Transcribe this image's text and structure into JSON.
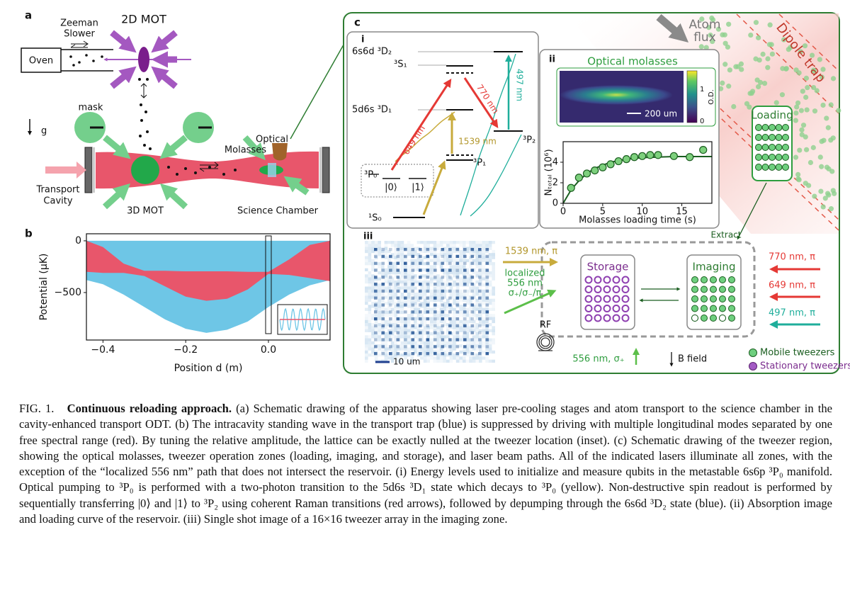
{
  "figure": {
    "a": {
      "label": "a",
      "oven": "Oven",
      "zeeman_1": "Zeeman",
      "zeeman_2": "Slower",
      "mot2d": "2D MOT",
      "gravity": "g",
      "mask": "mask",
      "optical_1": "Optical",
      "optical_2": "Molasses",
      "transport_1": "Transport",
      "transport_2": "Cavity",
      "mot3d": "3D MOT",
      "science": "Science Chamber"
    },
    "b": {
      "label": "b"
    },
    "c": {
      "label": "c",
      "atom_flux_1": "Atom",
      "atom_flux_2": "flux",
      "dipole_trap": "Dipole trap",
      "loading": "Loading",
      "extract": "Extract",
      "storage": "Storage",
      "imaging": "Imaging",
      "beam_1539": "1539 nm, π",
      "localized": [
        "localized",
        "556 nm",
        "σ₊/σ₋/π"
      ],
      "rf": "RF",
      "sigma_beam": "556 nm, σ₊",
      "bfield": "B field",
      "beams_right": [
        "770 nm, π",
        "649 nm, π",
        "497 nm, π"
      ],
      "legend": [
        "Mobile tweezers",
        "Stationary tweezers"
      ]
    },
    "i": {
      "label": "i",
      "levels": {
        "d2": "6s6d ³D₂",
        "s1": "³S₁",
        "d1": "5d6s ³D₁",
        "p2": "³P₂",
        "p1": "³P₁",
        "p0": "³P₀",
        "q0": "|0⟩",
        "q1": "|1⟩",
        "s0": "¹S₀"
      },
      "transitions": {
        "t649": "649 nm",
        "t770": "770 nm",
        "t497": "497 nm",
        "t1539": "1539 nm"
      }
    },
    "ii": {
      "label": "ii",
      "title": "Optical molasses",
      "cbar_ticks": [
        0,
        1
      ],
      "cbar_label": "O.D.",
      "scale": "200 um"
    },
    "iii": {
      "label": "iii",
      "scale": "10 um"
    }
  },
  "chart_data": [
    {
      "type": "area",
      "xlabel": "Position d (m)",
      "ylabel": "Potential (μK)",
      "x": [
        -0.44,
        -0.4,
        -0.35,
        -0.3,
        -0.25,
        -0.2,
        -0.15,
        -0.1,
        -0.05,
        0,
        0.05,
        0.1,
        0.149
      ],
      "series": [
        {
          "color": "#6ec6e6",
          "upper": [
            0,
            0,
            0,
            0,
            0,
            0,
            0,
            0,
            0,
            0,
            0,
            0,
            0
          ],
          "lower": [
            -380,
            -420,
            -520,
            -640,
            -760,
            -850,
            -890,
            -860,
            -780,
            -640,
            -520,
            -430,
            -380
          ]
        },
        {
          "color": "#e8566b",
          "upper": [
            0,
            -60,
            -220,
            -290,
            -290,
            -295,
            -295,
            -295,
            -300,
            -300,
            -180,
            -40,
            0
          ],
          "lower": [
            -300,
            -310,
            -310,
            -340,
            -440,
            -540,
            -580,
            -560,
            -470,
            -320,
            -330,
            -360,
            -390
          ]
        }
      ],
      "xlim": [
        -0.44,
        0.149
      ],
      "ylim": [
        -959,
        68
      ],
      "xticks": [
        {
          "value": -0.4,
          "label": "−0.4"
        },
        {
          "value": -0.2,
          "label": "−0.2"
        },
        {
          "value": 0,
          "label": "0.0"
        }
      ],
      "yticks": [
        0,
        {
          "value": -500,
          "label": "−500"
        }
      ]
    },
    {
      "type": "scatter",
      "xlabel": "Molasses loading time (s)",
      "ylabel": "Nₜₒₜₐₗ (10⁶)",
      "x": [
        1,
        2,
        3,
        4,
        5,
        6,
        7,
        8,
        9,
        10,
        11,
        12,
        14,
        16,
        17.7
      ],
      "values": [
        1.5,
        2.5,
        2.9,
        3.2,
        3.5,
        3.8,
        4.1,
        4.3,
        4.5,
        4.6,
        4.7,
        4.7,
        4.6,
        4.5,
        5.2
      ],
      "color": "#7dd07d",
      "fit": {
        "x": [
          0,
          1,
          2,
          3,
          4,
          5,
          6,
          8,
          10,
          12,
          14,
          16,
          18.8
        ],
        "values": [
          0,
          1.3,
          2.2,
          2.9,
          3.4,
          3.7,
          4.0,
          4.3,
          4.45,
          4.5,
          4.55,
          4.55,
          4.55
        ],
        "color": "#1b5e20"
      },
      "xlim": [
        0,
        18.8
      ],
      "ylim": [
        0,
        6
      ],
      "xticks": [
        0,
        5,
        10,
        15
      ],
      "yticks": [
        0,
        2,
        4
      ]
    }
  ],
  "caption": {
    "fig_label": "FIG. 1.",
    "title": "Continuous reloading approach.",
    "text": "(a) Schematic drawing of the apparatus showing laser pre-cooling stages and atom transport to the science chamber in the cavity-enhanced transport ODT. (b) The intracavity standing wave in the transport trap (blue) is suppressed by driving with multiple longitudinal modes separated by one free spectral range (red). By tuning the relative amplitude, the lattice can be exactly nulled at the tweezer location (inset). (c) Schematic drawing of the tweezer region, showing the optical molasses, tweezer operation zones (loading, imaging, and storage), and laser beam paths. All of the indicated lasers illuminate all zones, with the exception of the “localized 556 nm” path that does not intersect the reservoir. (i) Energy levels used to initialize and measure qubits in the metastable 6s6p ³P₀ manifold. Optical pumping to ³P₀ is performed with a two-photon transition to the 5d6s ³D₁ state which decays to ³P₀ (yellow). Non-destructive spin readout is performed by sequentially transferring |0⟩ and |1⟩ to ³P₂ using coherent Raman transitions (red arrows), followed by depumping through the 6s6d ³D₂ state (blue). (ii) Absorption image and loading curve of the reservoir. (iii) Single shot image of a 16×16 tweezer array in the imaging zone."
  }
}
